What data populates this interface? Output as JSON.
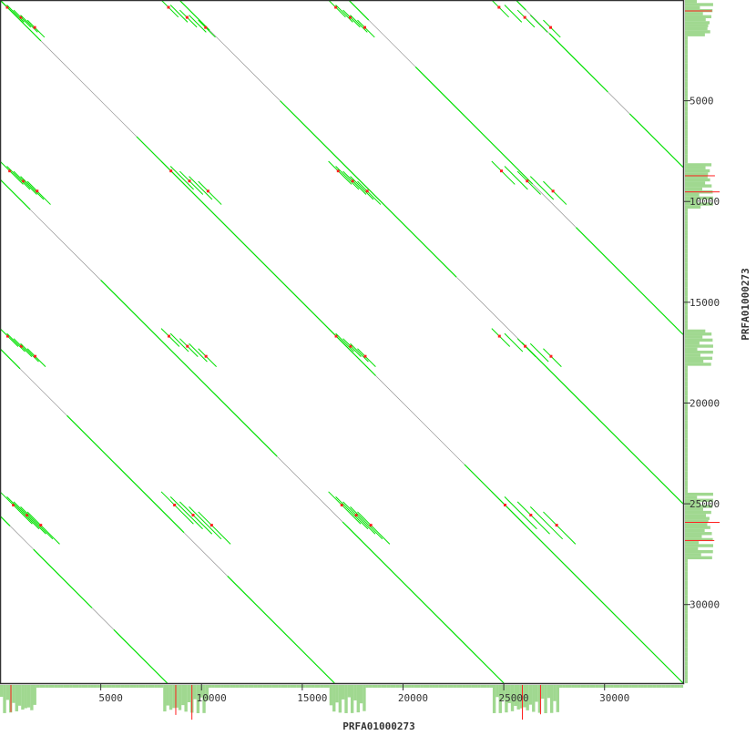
{
  "chart_data": {
    "type": "scatter",
    "subtype": "dot-plot",
    "xlabel": "PRFA01000273",
    "ylabel": "PRFA01000273",
    "xlim": [
      0,
      33900
    ],
    "ylim": [
      0,
      33900
    ],
    "y_inverted": true,
    "x_ticks": [
      5000,
      10000,
      15000,
      20000,
      25000,
      30000
    ],
    "y_ticks": [
      5000,
      10000,
      15000,
      20000,
      25000,
      30000
    ],
    "x_tick_labels": [
      "5000",
      "10000",
      "15000",
      "20000",
      "25000",
      "30000"
    ],
    "y_tick_labels": [
      "5000",
      "10000",
      "15000",
      "20000",
      "25000",
      "30000"
    ],
    "diagonal_offsets": [
      0,
      8900,
      17300,
      25600,
      -8900,
      -17300,
      -25600
    ],
    "repeat_clusters": [
      [
        0,
        1700
      ],
      [
        8000,
        10300
      ],
      [
        16300,
        18100
      ],
      [
        24400,
        27600
      ]
    ],
    "colors": {
      "match": "#00e000",
      "weak_match": "#888888",
      "highlight": "#ff2020",
      "histogram": "#a0d890",
      "axis": "#333333"
    }
  }
}
